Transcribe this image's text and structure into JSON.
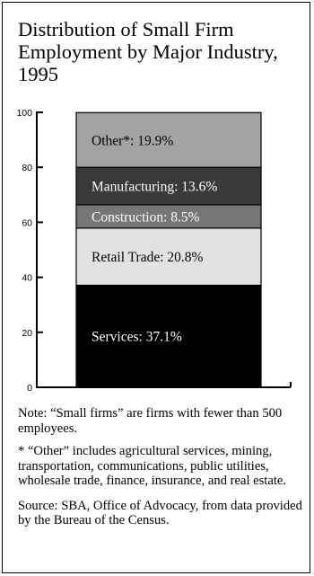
{
  "chart_data": {
    "type": "stacked-bar",
    "title": "Distribution of Small Firm Employment by Major Industry, 1995",
    "y_ticks": [
      "0",
      "20",
      "40",
      "60",
      "80",
      "100"
    ],
    "ylim": [
      0,
      100
    ],
    "grid": false,
    "series": [
      {
        "name": "Services",
        "value": 37.1,
        "label": "Services: 37.1%",
        "color": "#000000",
        "text_color": "#ffffff"
      },
      {
        "name": "Retail Trade",
        "value": 20.8,
        "label": "Retail Trade: 20.8%",
        "color": "#e2e2e2",
        "text_color": "#000000"
      },
      {
        "name": "Construction",
        "value": 8.5,
        "label": "Construction: 8.5%",
        "color": "#767676",
        "text_color": "#ffffff"
      },
      {
        "name": "Manufacturing",
        "value": 13.6,
        "label": "Manufacturing: 13.6%",
        "color": "#3a3a3a",
        "text_color": "#ffffff"
      },
      {
        "name": "Other*",
        "value": 19.9,
        "label": "Other*: 19.9%",
        "color": "#a3a3a3",
        "text_color": "#000000"
      }
    ]
  },
  "notes": {
    "note": "Note: “Small firms” are firms with fewer than 500 employees.",
    "other": "* “Other” includes agricultural services, mining, transportation, communications, public utilities, wholesale trade, finance, insurance, and real estate.",
    "source": "Source: SBA, Office of Advocacy, from data provided by the Bureau of the Census."
  }
}
